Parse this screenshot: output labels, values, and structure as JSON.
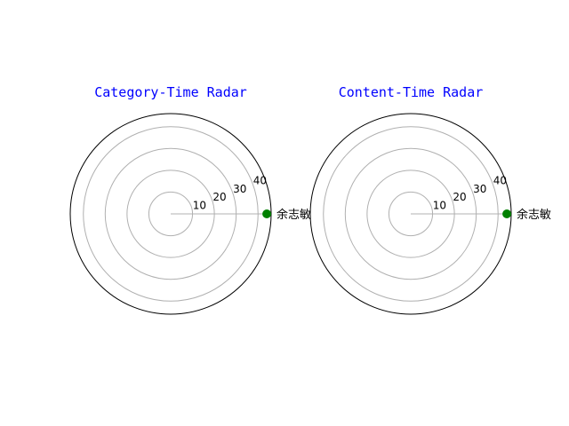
{
  "chart_data": [
    {
      "type": "radar",
      "title": "Category-Time Radar",
      "title_color": "#0000ff",
      "categories": [
        "余志敏"
      ],
      "series": [
        {
          "values": [
            44
          ],
          "color": "#008000"
        }
      ],
      "r_ticks": [
        10,
        20,
        30,
        40
      ],
      "r_tick_labels": [
        "10",
        "20",
        "30",
        "40"
      ],
      "rlim": [
        0,
        46
      ],
      "grid": true
    },
    {
      "type": "radar",
      "title": "Content-Time Radar",
      "title_color": "#0000ff",
      "categories": [
        "余志敏"
      ],
      "series": [
        {
          "values": [
            44
          ],
          "color": "#008000"
        }
      ],
      "r_ticks": [
        10,
        20,
        30,
        40
      ],
      "r_tick_labels": [
        "10",
        "20",
        "30",
        "40"
      ],
      "rlim": [
        0,
        46
      ],
      "grid": true
    }
  ]
}
